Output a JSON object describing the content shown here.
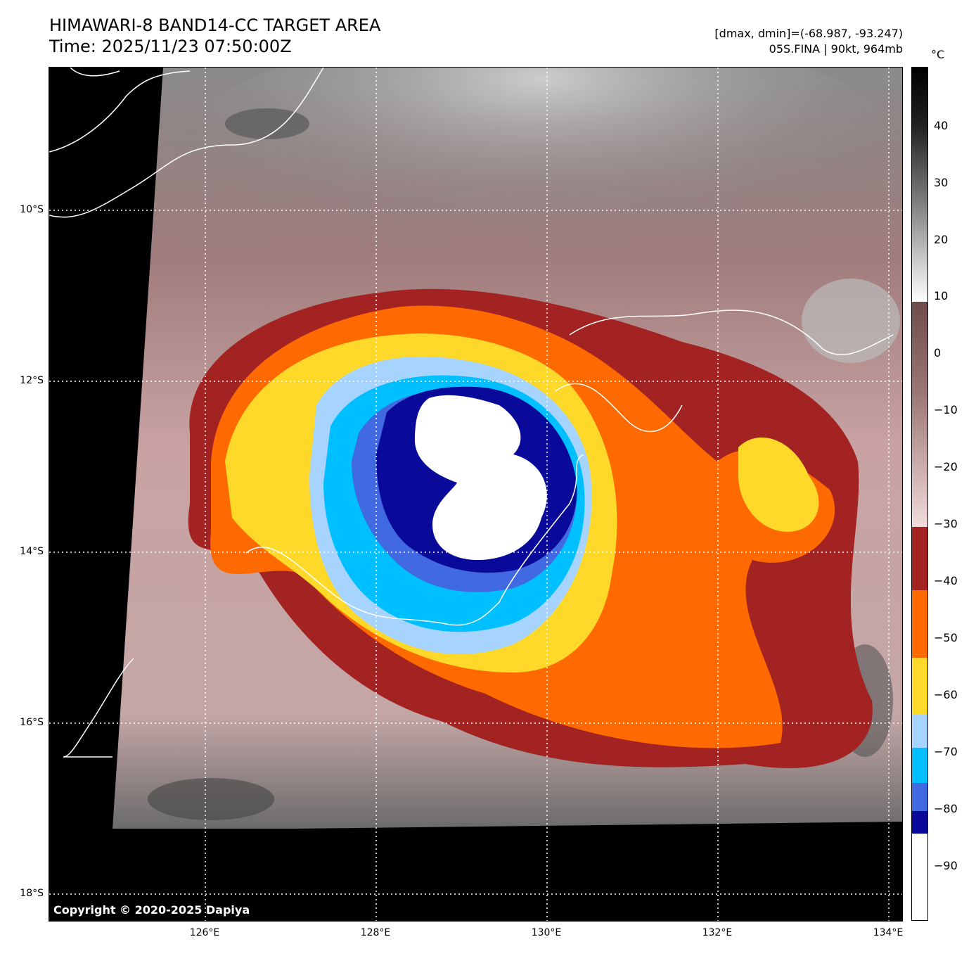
{
  "header": {
    "title_line1": "HIMAWARI-8 BAND14-CC TARGET AREA",
    "title_line2": "Time: 2025/11/23 07:50:00Z",
    "info_line1": "[dmax, dmin]=(-68.987, -93.247)",
    "info_line2": "05S.FINA | 90kt, 964mb"
  },
  "map": {
    "copyright": "Copyright © 2020-2025 Dapiya",
    "lat_labels": [
      "10°S",
      "12°S",
      "14°S",
      "16°S",
      "18°S"
    ],
    "lon_labels": [
      "126°E",
      "128°E",
      "130°E",
      "132°E",
      "134°E"
    ],
    "storm_colors": {
      "warm_cloud": "#c9a3a3",
      "dark_red": "#a32222",
      "orange": "#ff6a00",
      "yellow": "#ffd92a",
      "light_blue": "#a6d4ff",
      "cyan": "#00bfff",
      "royal_blue": "#4169e1",
      "navy": "#0a0a9a",
      "white_core": "#ffffff"
    }
  },
  "colorbar": {
    "unit": "°C",
    "tick_labels": [
      "40",
      "30",
      "20",
      "10",
      "0",
      "−10",
      "−20",
      "−30",
      "−40",
      "−50",
      "−60",
      "−70",
      "−80",
      "−90"
    ]
  }
}
